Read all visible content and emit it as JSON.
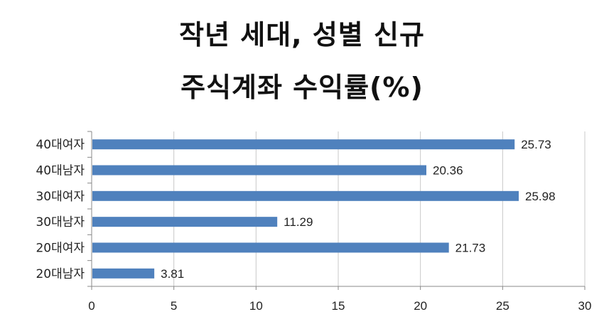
{
  "title_line1": "작년 세대, 성별 신규",
  "title_line2": "주식계좌 수익률(%)",
  "chart_data": {
    "type": "bar",
    "orientation": "horizontal",
    "categories": [
      "40대여자",
      "40대남자",
      "30대여자",
      "30대남자",
      "20대여자",
      "20대남자"
    ],
    "values": [
      25.73,
      20.36,
      25.98,
      11.29,
      21.73,
      3.81
    ],
    "value_labels": [
      "25.73",
      "20.36",
      "25.98",
      "11.29",
      "21.73",
      "3.81"
    ],
    "xticks": [
      "0",
      "5",
      "10",
      "15",
      "20",
      "25",
      "30"
    ],
    "xlim": [
      0,
      30
    ],
    "grid": "vertical",
    "bar_color": "#4F81BD"
  }
}
